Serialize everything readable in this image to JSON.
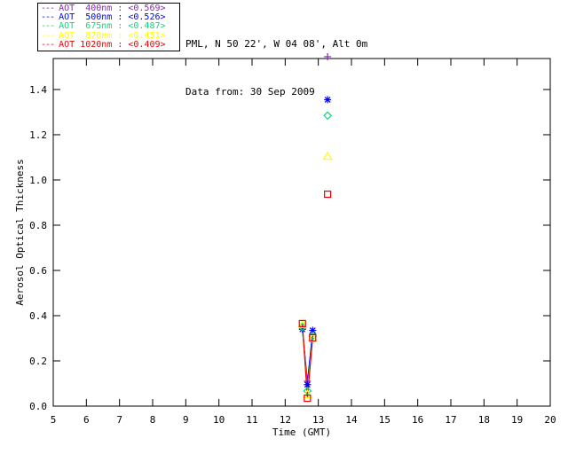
{
  "header": {
    "station": "PML, N 50 22', W 04 08', Alt 0m",
    "date_line": "Data from: 30 Sep 2009"
  },
  "legend": {
    "dash_sample": "---",
    "separator": " : "
  },
  "chart_data": {
    "type": "line",
    "title": "",
    "xlabel": "Time (GMT)",
    "ylabel": "Aerosol Optical Thickness",
    "xlim": [
      5,
      20
    ],
    "ylim": [
      0,
      1.537
    ],
    "xticks": [
      5,
      6,
      7,
      8,
      9,
      10,
      11,
      12,
      13,
      14,
      15,
      16,
      17,
      18,
      19,
      20
    ],
    "yticks": [
      0.0,
      0.2,
      0.4,
      0.6,
      0.8,
      1.0,
      1.2,
      1.4
    ],
    "grid": false,
    "legend_position": "top-left-outside",
    "series": [
      {
        "name": "AOT  400nm",
        "mean_label": "<0.569>",
        "color": "#9120BE",
        "marker": "plus",
        "line_points": [
          [
            12.52,
            0.345
          ],
          [
            12.67,
            0.11
          ],
          [
            12.83,
            0.32
          ]
        ],
        "isolated_points": [
          [
            13.28,
            1.545
          ]
        ]
      },
      {
        "name": "AOT  500nm",
        "mean_label": "<0.526>",
        "color": "#0000FF",
        "marker": "asterisk",
        "line_points": [
          [
            12.52,
            0.34
          ],
          [
            12.67,
            0.095
          ],
          [
            12.83,
            0.335
          ]
        ],
        "isolated_points": [
          [
            13.28,
            1.355
          ]
        ]
      },
      {
        "name": "AOT  675nm",
        "mean_label": "<0.487>",
        "color": "#00DC7E",
        "marker": "diamond",
        "line_points": [
          [
            12.52,
            0.35
          ],
          [
            12.67,
            0.067
          ],
          [
            12.83,
            0.31
          ]
        ],
        "isolated_points": [
          [
            13.28,
            1.285
          ]
        ]
      },
      {
        "name": "AOT  870nm",
        "mean_label": "<0.451>",
        "color": "#FFFF00",
        "marker": "triangle",
        "line_points": [
          [
            12.52,
            0.36
          ],
          [
            12.67,
            0.052
          ],
          [
            12.83,
            0.3
          ]
        ],
        "isolated_points": [
          [
            13.28,
            1.105
          ]
        ]
      },
      {
        "name": "AOT 1020nm",
        "mean_label": "<0.409>",
        "color": "#EE0000",
        "marker": "square",
        "line_points": [
          [
            12.52,
            0.365
          ],
          [
            12.67,
            0.035
          ],
          [
            12.83,
            0.302
          ]
        ],
        "isolated_points": [
          [
            13.28,
            0.937
          ]
        ]
      }
    ]
  }
}
